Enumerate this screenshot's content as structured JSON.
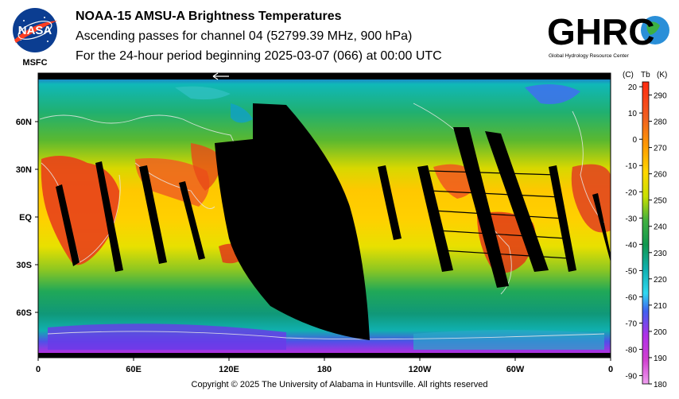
{
  "logos": {
    "nasa": {
      "text": "NASA",
      "caption": "MSFC"
    },
    "ghrc": {
      "text": "GHRC",
      "caption": "Global Hydrology Resource Center"
    }
  },
  "header": {
    "title": "NOAA-15 AMSU-A Brightness Temperatures",
    "subtitle": "Ascending passes for channel 04 (52799.39 MHz, 900 hPa)",
    "period": "For the 24-hour period beginning 2025-03-07 (066) at 00:00 UTC"
  },
  "map": {
    "lat_labels": [
      {
        "label": "60N",
        "lat": 60
      },
      {
        "label": "30N",
        "lat": 30
      },
      {
        "label": "EQ",
        "lat": 0
      },
      {
        "label": "30S",
        "lat": -30
      },
      {
        "label": "60S",
        "lat": -60
      }
    ],
    "lon_labels": [
      {
        "label": "0",
        "lon": 0
      },
      {
        "label": "60E",
        "lon": 60
      },
      {
        "label": "120E",
        "lon": 120
      },
      {
        "label": "180",
        "lon": 180
      },
      {
        "label": "120W",
        "lon": 240
      },
      {
        "label": "60W",
        "lon": 300
      },
      {
        "label": "0",
        "lon": 360
      }
    ],
    "colors": {
      "hot": "#e02a10",
      "warm": "#ffd700",
      "mid": "#20a050",
      "cool": "#10b0b0",
      "cold": "#4060e0",
      "coldest": "#c020e0",
      "gap": "#000000"
    }
  },
  "colorbar": {
    "header_c": "(C)",
    "header_tb": "Tb",
    "header_k": "(K)",
    "celsius_ticks": [
      "20",
      "10",
      "0",
      "-10",
      "-20",
      "-30",
      "-40",
      "-50",
      "-60",
      "-70",
      "-80",
      "-90"
    ],
    "kelvin_ticks": [
      "290",
      "280",
      "270",
      "260",
      "250",
      "240",
      "230",
      "220",
      "210",
      "200",
      "190",
      "180"
    ],
    "range_k": [
      180,
      295
    ]
  },
  "footer": {
    "copyright": "Copyright © 2025 The University of Alabama in Huntsville.  All rights reserved"
  }
}
